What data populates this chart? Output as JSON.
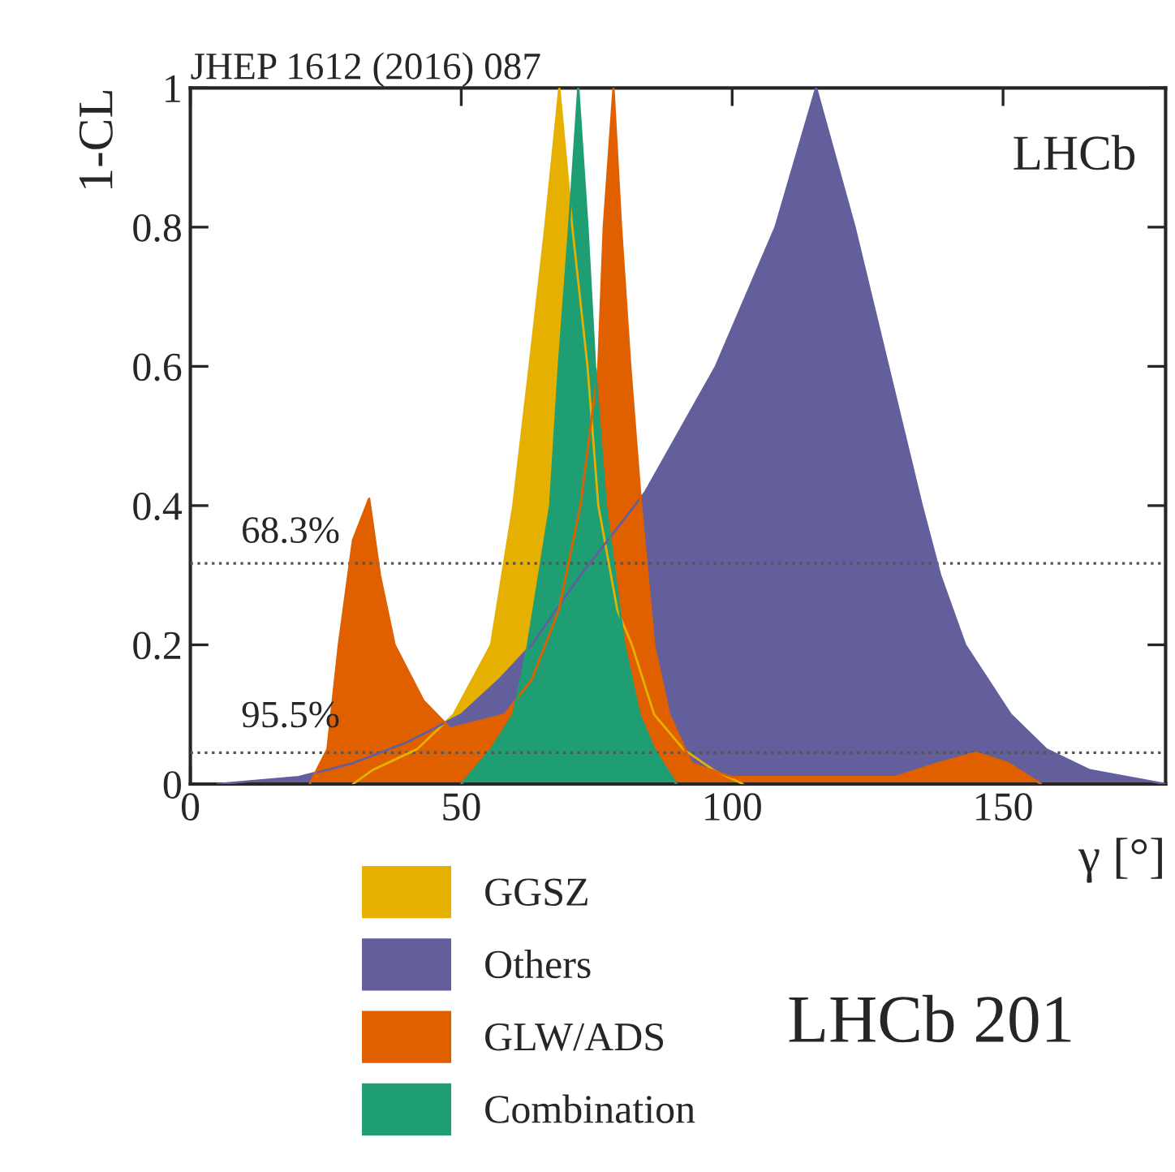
{
  "chart_data": {
    "type": "area",
    "title": "JHEP 1612 (2016) 087",
    "xlabel": "γ [°]",
    "ylabel": "1-CL",
    "xlim": [
      0,
      180
    ],
    "xticks": [
      0,
      50,
      100,
      150
    ],
    "ylim": [
      0,
      1
    ],
    "yticks": [
      0,
      0.2,
      0.4,
      0.6,
      0.8,
      1
    ],
    "series": [
      {
        "name": "GGSZ",
        "color": "#e6b000",
        "x": [
          30,
          33.6,
          41.8,
          48.6,
          55.5,
          59.6,
          62.6,
          65.5,
          68.1,
          70.5,
          73.3,
          75.3,
          78.8,
          81.5,
          85.6,
          91,
          96.6,
          102
        ],
        "values": [
          0,
          0.02,
          0.05,
          0.1,
          0.2,
          0.4,
          0.6,
          0.8,
          1,
          0.8,
          0.6,
          0.4,
          0.25,
          0.2,
          0.1,
          0.05,
          0.02,
          0
        ]
      },
      {
        "name": "Others",
        "color": "#625f9c",
        "x": [
          5,
          20,
          30,
          40,
          50,
          57,
          63,
          72,
          84,
          97,
          108,
          115.5,
          122.6,
          128.8,
          135,
          138.4,
          143,
          151.4,
          158,
          166,
          180
        ],
        "values": [
          0,
          0.01,
          0.03,
          0.06,
          0.1,
          0.15,
          0.2,
          0.3,
          0.42,
          0.6,
          0.8,
          1,
          0.8,
          0.6,
          0.4,
          0.3,
          0.2,
          0.1,
          0.05,
          0.02,
          0
        ]
      },
      {
        "name": "GLW/ADS",
        "color": "#e06000",
        "x": [
          22,
          25.3,
          27.4,
          30,
          33,
          35,
          37.7,
          43,
          48,
          53,
          58,
          63,
          68,
          72,
          75.3,
          76.3,
          78.1,
          79.5,
          81.2,
          83.2,
          85.6,
          88.4,
          92.5,
          100,
          130,
          138,
          145,
          151,
          157
        ],
        "values": [
          0,
          0.05,
          0.2,
          0.35,
          0.41,
          0.3,
          0.2,
          0.12,
          0.08,
          0.09,
          0.1,
          0.15,
          0.25,
          0.4,
          0.6,
          0.8,
          1,
          0.8,
          0.6,
          0.4,
          0.2,
          0.1,
          0.03,
          0.01,
          0.01,
          0.03,
          0.045,
          0.03,
          0
        ]
      },
      {
        "name": "Combination",
        "color": "#1f9e74",
        "x": [
          50,
          55.5,
          59.6,
          62.3,
          66.4,
          68,
          69.9,
          71.6,
          73.3,
          74.7,
          76.7,
          80.1,
          82.9,
          85.6,
          89.7
        ],
        "values": [
          0,
          0.05,
          0.1,
          0.2,
          0.4,
          0.6,
          0.8,
          1,
          0.8,
          0.6,
          0.4,
          0.2,
          0.1,
          0.05,
          0
        ]
      }
    ],
    "ref_lines": [
      {
        "axis": "y",
        "value": 0.317,
        "color": "#555555",
        "line_style": "dotted"
      },
      {
        "axis": "y",
        "value": 0.045,
        "color": "#555555",
        "line_style": "dotted"
      }
    ],
    "annotations": [
      "LHCb",
      "LHCb 201",
      "68.3%",
      "95.5%"
    ],
    "legend": "bottom"
  }
}
